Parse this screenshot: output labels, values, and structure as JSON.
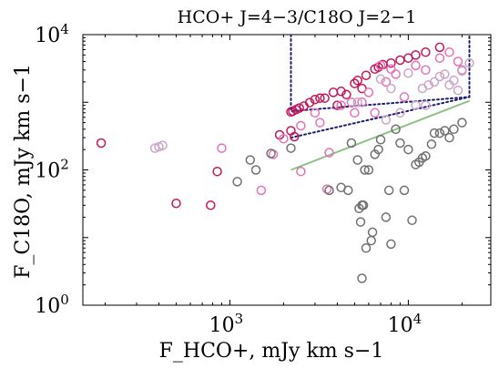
{
  "chart_data": {
    "type": "scatter",
    "title": "HCO+ J=4−3/C18O J=2−1",
    "xlabel": "F_HCO+, mJy km s−1",
    "ylabel": "F_C18O, mJy km s−1",
    "xscale": "log",
    "yscale": "log",
    "xlim": [
      150,
      29000
    ],
    "ylim": [
      1,
      10000
    ],
    "x_ticks": [
      {
        "value": 1000,
        "label": "10",
        "exp": "3"
      },
      {
        "value": 10000,
        "label": "10",
        "exp": "4"
      }
    ],
    "y_ticks": [
      {
        "value": 1,
        "label": "10",
        "exp": "0"
      },
      {
        "value": 100,
        "label": "10",
        "exp": "2"
      },
      {
        "value": 10000,
        "label": "10",
        "exp": "4"
      }
    ],
    "series": [
      {
        "color": "#c2185b",
        "points": [
          [
            190,
            250
          ],
          [
            500,
            32
          ],
          [
            780,
            30
          ],
          [
            850,
            95
          ],
          [
            2200,
            720
          ],
          [
            2250,
            740
          ],
          [
            2350,
            780
          ],
          [
            2450,
            820
          ],
          [
            2600,
            880
          ],
          [
            2800,
            990
          ],
          [
            3000,
            1100
          ],
          [
            3200,
            1150
          ],
          [
            3400,
            1150
          ],
          [
            3800,
            1400
          ],
          [
            4200,
            1450
          ],
          [
            4500,
            1300
          ],
          [
            5000,
            1900
          ],
          [
            5200,
            2100
          ],
          [
            5800,
            2500
          ],
          [
            6500,
            3100
          ],
          [
            6800,
            3300
          ],
          [
            7200,
            3600
          ],
          [
            8000,
            3800
          ],
          [
            9000,
            4200
          ],
          [
            10000,
            4500
          ],
          [
            11000,
            5000
          ],
          [
            12500,
            5500
          ],
          [
            15000,
            6500
          ],
          [
            2300,
            310
          ],
          [
            2200,
            380
          ],
          [
            1900,
            330
          ],
          [
            5500,
            1600
          ],
          [
            4000,
            900
          ]
        ]
      },
      {
        "color": "#e472b8",
        "points": [
          [
            900,
            210
          ],
          [
            1500,
            50
          ],
          [
            1750,
            170
          ],
          [
            2000,
            290
          ],
          [
            2500,
            95
          ],
          [
            3000,
            700
          ],
          [
            3500,
            52
          ],
          [
            3600,
            180
          ],
          [
            4200,
            900
          ],
          [
            4800,
            1000
          ],
          [
            5500,
            1000
          ],
          [
            6500,
            700
          ],
          [
            7500,
            2000
          ],
          [
            8500,
            2600
          ],
          [
            9500,
            1200
          ],
          [
            11000,
            3500
          ],
          [
            12500,
            3000
          ],
          [
            15000,
            4500
          ],
          [
            17000,
            5500
          ],
          [
            19000,
            4000
          ],
          [
            20000,
            3000
          ],
          [
            7000,
            3500
          ],
          [
            8000,
            3100
          ],
          [
            6000,
            1400
          ],
          [
            5000,
            700
          ],
          [
            3200,
            500
          ],
          [
            2500,
            450
          ]
        ]
      },
      {
        "color": "#c9a6c9",
        "points": [
          [
            380,
            210
          ],
          [
            400,
            220
          ],
          [
            420,
            230
          ],
          [
            5200,
            1000
          ],
          [
            7000,
            2200
          ],
          [
            8000,
            1600
          ],
          [
            10000,
            2700
          ],
          [
            11000,
            900
          ],
          [
            12000,
            1600
          ],
          [
            13000,
            1800
          ],
          [
            14000,
            2000
          ],
          [
            15000,
            2400
          ],
          [
            16000,
            2600
          ],
          [
            17000,
            1800
          ],
          [
            18000,
            2100
          ],
          [
            19000,
            1500
          ],
          [
            20000,
            2900
          ],
          [
            22000,
            3800
          ],
          [
            12500,
            900
          ],
          [
            9000,
            700
          ],
          [
            7500,
            550
          ]
        ]
      },
      {
        "color": "#707070",
        "points": [
          [
            1100,
            67
          ],
          [
            1300,
            140
          ],
          [
            1400,
            100
          ],
          [
            1700,
            175
          ],
          [
            2200,
            210
          ],
          [
            3600,
            50
          ],
          [
            4200,
            55
          ],
          [
            4600,
            50
          ],
          [
            4800,
            250
          ],
          [
            5200,
            140
          ],
          [
            5300,
            27
          ],
          [
            5500,
            30
          ],
          [
            5600,
            30
          ],
          [
            5800,
            7
          ],
          [
            5400,
            17
          ],
          [
            5700,
            100
          ],
          [
            6000,
            100
          ],
          [
            6300,
            12
          ],
          [
            6500,
            170
          ],
          [
            6800,
            200
          ],
          [
            7000,
            280
          ],
          [
            7500,
            20
          ],
          [
            7800,
            50
          ],
          [
            8000,
            8
          ],
          [
            8500,
            400
          ],
          [
            9000,
            250
          ],
          [
            9500,
            50
          ],
          [
            10000,
            200
          ],
          [
            10500,
            18
          ],
          [
            11000,
            120
          ],
          [
            11500,
            130
          ],
          [
            12000,
            150
          ],
          [
            12500,
            160
          ],
          [
            13500,
            240
          ],
          [
            14000,
            350
          ],
          [
            15000,
            350
          ],
          [
            16000,
            380
          ],
          [
            17000,
            300
          ],
          [
            18000,
            400
          ],
          [
            20000,
            500
          ],
          [
            5500,
            2.5
          ],
          [
            6200,
            9
          ]
        ]
      }
    ],
    "lines": [
      {
        "color": "#8cc184",
        "style": "solid",
        "points": [
          [
            2200,
            100
          ],
          [
            22000,
            1050
          ]
        ]
      },
      {
        "color": "#1e1e6e",
        "style": "dotted",
        "points": [
          [
            2200,
            10000
          ],
          [
            2200,
            740
          ],
          [
            22000,
            1200
          ],
          [
            22000,
            10000
          ]
        ]
      },
      {
        "color": "#1e1e6e",
        "style": "dotted",
        "points": [
          [
            2200,
            300
          ],
          [
            22000,
            1200
          ]
        ]
      }
    ]
  }
}
